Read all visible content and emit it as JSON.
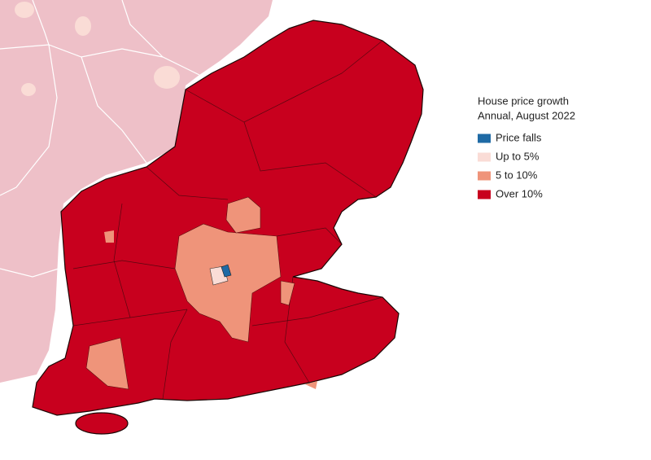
{
  "legend": {
    "title": [
      "House price growth",
      "Annual, August 2022"
    ],
    "items": [
      {
        "label": "Price falls",
        "color": "#1f6aa5"
      },
      {
        "label": "Up to 5%",
        "color": "#fadcd6"
      },
      {
        "label": "5 to 10%",
        "color": "#ef947a"
      },
      {
        "label": "Over 10%",
        "color": "#c8001e"
      }
    ]
  }
}
